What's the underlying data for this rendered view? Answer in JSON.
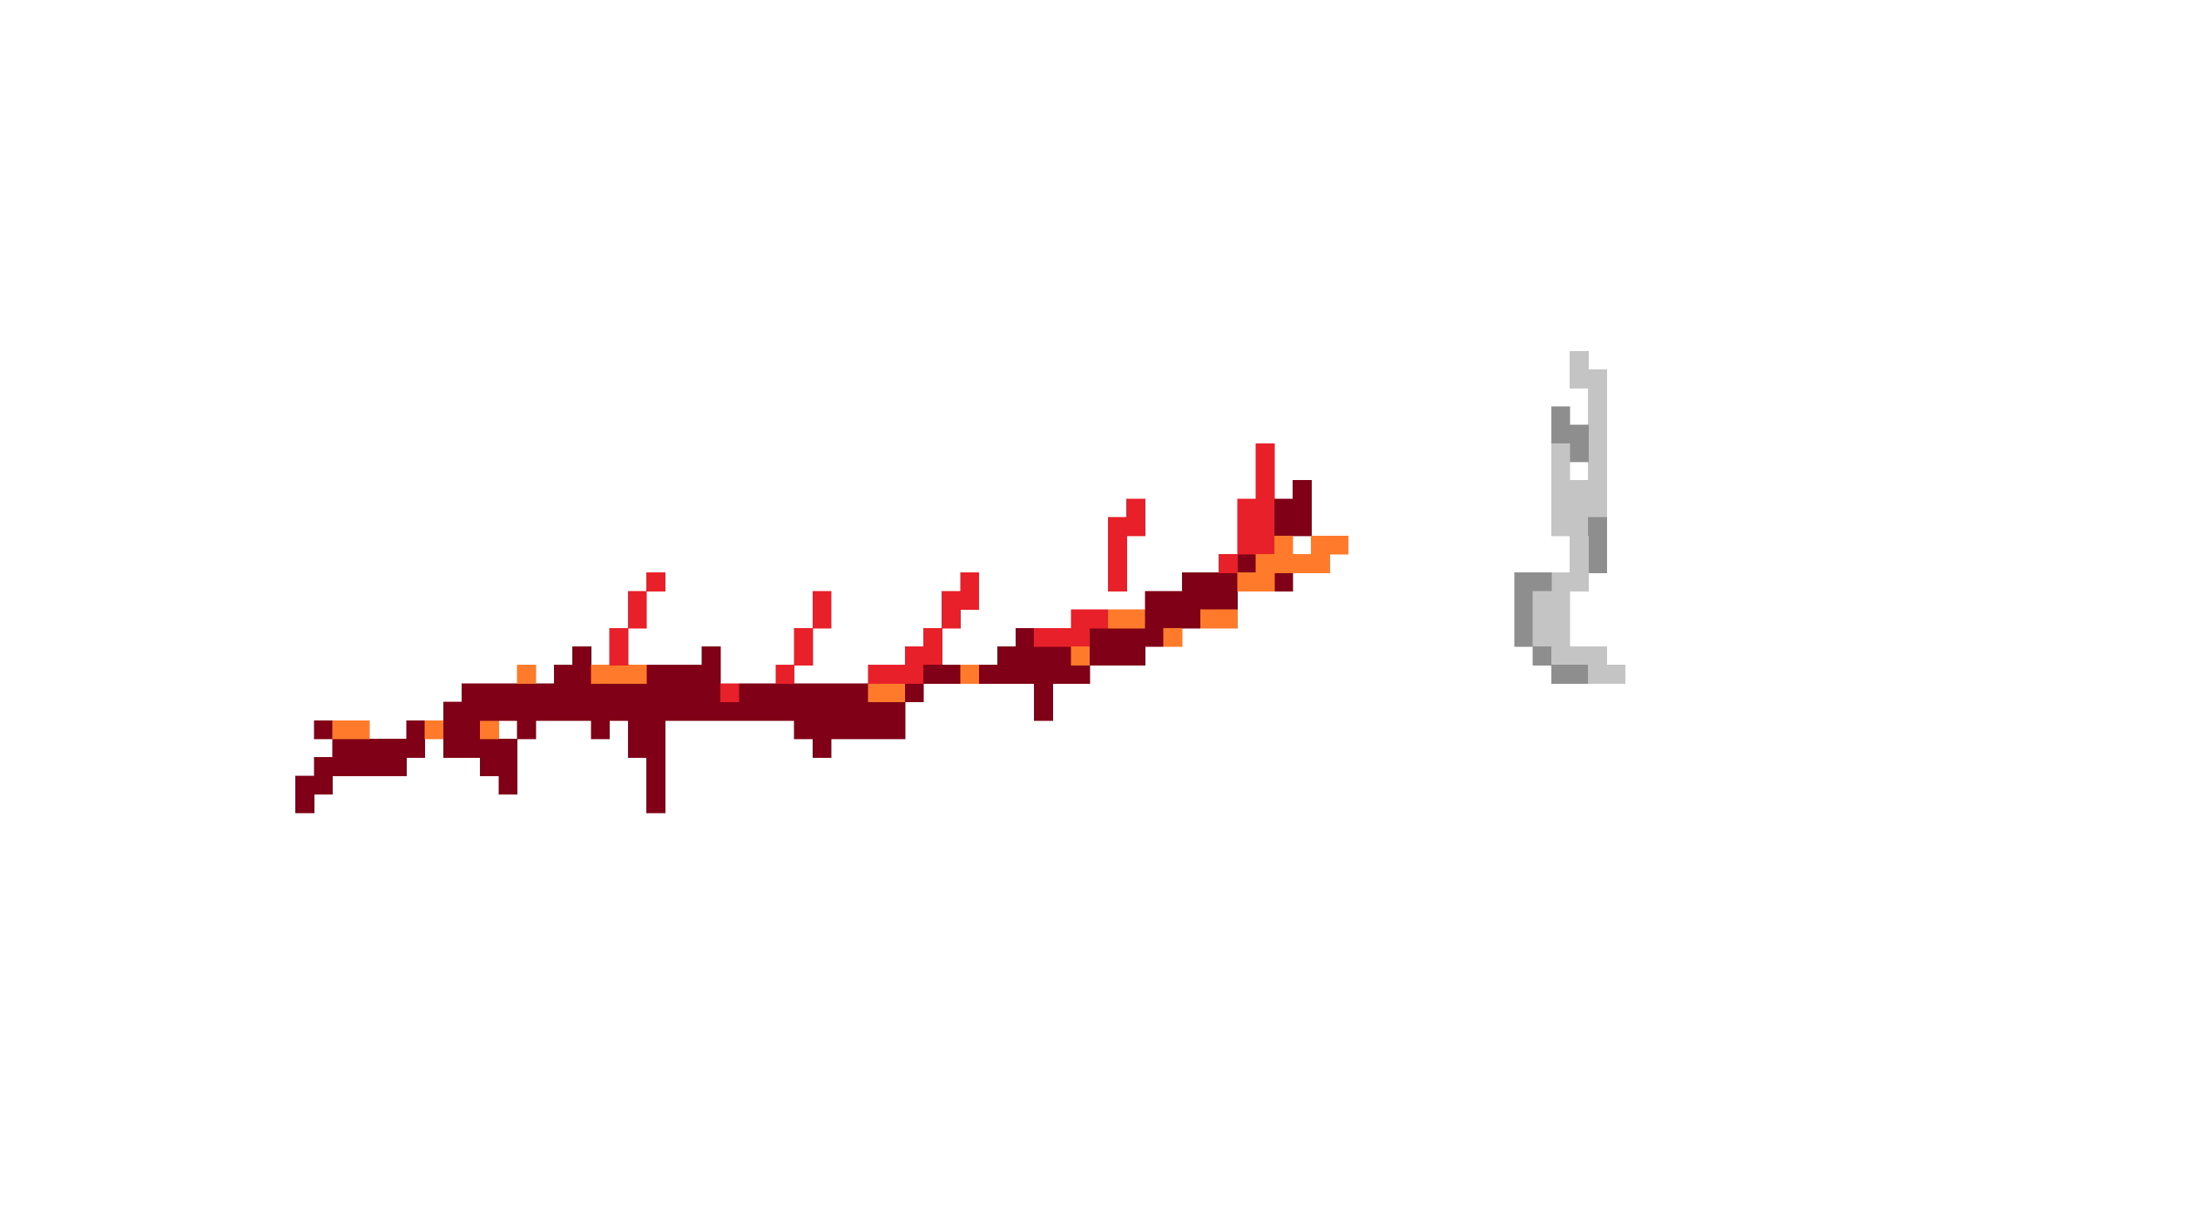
{
  "scene": {
    "background": "#ffffff",
    "palette": {
      "maroon": "#800018",
      "red": "#e8202a",
      "orange": "#ff7a2a",
      "light_gray": "#c4c4c4",
      "mid_gray": "#8e8e8e"
    },
    "objects": [
      {
        "name": "red-branch-sprite",
        "description_colors": [
          "maroon",
          "red",
          "orange"
        ]
      },
      {
        "name": "gray-figure-sprite",
        "description_colors": [
          "light_gray",
          "mid_gray"
        ]
      }
    ]
  }
}
